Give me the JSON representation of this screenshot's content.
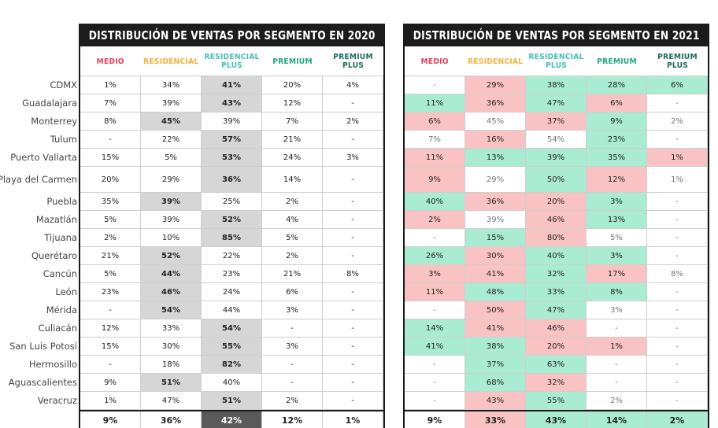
{
  "colors": {
    "medio": "#e8415b",
    "residencial": "#f2b33d",
    "residencial_plus": "#45c0b8",
    "premium": "#1fa882",
    "premium_plus": "#1d6b5a",
    "highlight_2020": "#d6d6d6",
    "total_highlight_2020": "#5a5a5a",
    "pink": "#f9c3c3",
    "green": "#a9ecd1",
    "title_bg": "#1c1c1c"
  },
  "columns": [
    {
      "label": "MEDIO",
      "color_key": "medio"
    },
    {
      "label": "RESIDENCIAL",
      "color_key": "residencial"
    },
    {
      "label": "RESIDENCIAL PLUS",
      "color_key": "residencial_plus"
    },
    {
      "label": "PREMIUM",
      "color_key": "premium"
    },
    {
      "label": "PREMIUM PLUS",
      "color_key": "premium_plus"
    }
  ],
  "cities": [
    "CDMX",
    "Guadalajara",
    "Monterrey",
    "Tulum",
    "Puerto Vallarta",
    "Playa del Carmen",
    "Puebla",
    "Mazatlán",
    "Tijuana",
    "Querétaro",
    "Cancún",
    "León",
    "Mérida",
    "Culiacán",
    "San Luis Potosí",
    "Hermosillo",
    "Aguascalientes",
    "Veracruz"
  ],
  "chart_data": [
    {
      "type": "table",
      "title": "DISTRIBUCIÓN DE VENTAS POR SEGMENTO EN 2020",
      "columns": [
        "MEDIO",
        "RESIDENCIAL",
        "RESIDENCIAL PLUS",
        "PREMIUM",
        "PREMIUM PLUS"
      ],
      "rows": [
        [
          "1%",
          "34%",
          "41%",
          "20%",
          "4%"
        ],
        [
          "7%",
          "39%",
          "43%",
          "12%",
          "-"
        ],
        [
          "8%",
          "45%",
          "39%",
          "7%",
          "2%"
        ],
        [
          "-",
          "22%",
          "57%",
          "21%",
          "-"
        ],
        [
          "15%",
          "5%",
          "53%",
          "24%",
          "3%"
        ],
        [
          "20%",
          "29%",
          "36%",
          "14%",
          "-"
        ],
        [
          "35%",
          "39%",
          "25%",
          "2%",
          "-"
        ],
        [
          "5%",
          "39%",
          "52%",
          "4%",
          "-"
        ],
        [
          "2%",
          "10%",
          "85%",
          "5%",
          "-"
        ],
        [
          "21%",
          "52%",
          "22%",
          "2%",
          "-"
        ],
        [
          "5%",
          "44%",
          "23%",
          "21%",
          "8%"
        ],
        [
          "23%",
          "46%",
          "24%",
          "6%",
          "-"
        ],
        [
          "-",
          "54%",
          "44%",
          "3%",
          "-"
        ],
        [
          "12%",
          "33%",
          "54%",
          "-",
          "-"
        ],
        [
          "15%",
          "30%",
          "55%",
          "3%",
          "-"
        ],
        [
          "-",
          "18%",
          "82%",
          "-",
          "-"
        ],
        [
          "9%",
          "51%",
          "40%",
          "-",
          "-"
        ],
        [
          "1%",
          "47%",
          "51%",
          "2%",
          "-"
        ]
      ],
      "highlight_col": [
        2,
        2,
        1,
        2,
        2,
        2,
        1,
        2,
        2,
        1,
        1,
        1,
        1,
        2,
        2,
        2,
        1,
        2
      ],
      "totals": [
        "9%",
        "36%",
        "42%",
        "12%",
        "1%"
      ],
      "totals_highlight_col": 2
    },
    {
      "type": "table",
      "title": "DISTRIBUCIÓN DE VENTAS POR SEGMENTO EN 2021",
      "columns": [
        "MEDIO",
        "RESIDENCIAL",
        "RESIDENCIAL PLUS",
        "PREMIUM",
        "PREMIUM PLUS"
      ],
      "rows": [
        [
          "-",
          "29%",
          "38%",
          "28%",
          "6%"
        ],
        [
          "11%",
          "36%",
          "47%",
          "6%",
          "-"
        ],
        [
          "6%",
          "45%",
          "37%",
          "9%",
          "2%"
        ],
        [
          "7%",
          "16%",
          "54%",
          "23%",
          "-"
        ],
        [
          "11%",
          "13%",
          "39%",
          "35%",
          "1%"
        ],
        [
          "9%",
          "29%",
          "50%",
          "12%",
          "1%"
        ],
        [
          "40%",
          "36%",
          "20%",
          "3%",
          "-"
        ],
        [
          "2%",
          "39%",
          "46%",
          "13%",
          "-"
        ],
        [
          "-",
          "15%",
          "80%",
          "5%",
          "-"
        ],
        [
          "26%",
          "30%",
          "40%",
          "3%",
          "-"
        ],
        [
          "3%",
          "41%",
          "32%",
          "17%",
          "8%"
        ],
        [
          "11%",
          "48%",
          "33%",
          "8%",
          "-"
        ],
        [
          "-",
          "50%",
          "47%",
          "3%",
          "-"
        ],
        [
          "14%",
          "41%",
          "46%",
          "-",
          "-"
        ],
        [
          "41%",
          "38%",
          "20%",
          "1%",
          "-"
        ],
        [
          "-",
          "37%",
          "63%",
          "-",
          "-"
        ],
        [
          "-",
          "68%",
          "32%",
          "-",
          "-"
        ],
        [
          "-",
          "43%",
          "55%",
          "2%",
          "-"
        ]
      ],
      "shading": [
        [
          "n",
          "p",
          "g",
          "g",
          "g"
        ],
        [
          "g",
          "p",
          "g",
          "p",
          "n"
        ],
        [
          "p",
          "n",
          "p",
          "g",
          "n"
        ],
        [
          "n",
          "p",
          "n",
          "g",
          "n"
        ],
        [
          "p",
          "g",
          "g",
          "g",
          "p"
        ],
        [
          "p",
          "n",
          "g",
          "p",
          "n"
        ],
        [
          "g",
          "p",
          "p",
          "g",
          "n"
        ],
        [
          "p",
          "n",
          "p",
          "g",
          "n"
        ],
        [
          "n",
          "g",
          "p",
          "n",
          "n"
        ],
        [
          "g",
          "p",
          "g",
          "g",
          "n"
        ],
        [
          "p",
          "p",
          "g",
          "p",
          "n"
        ],
        [
          "p",
          "g",
          "g",
          "g",
          "n"
        ],
        [
          "n",
          "p",
          "g",
          "n",
          "n"
        ],
        [
          "g",
          "p",
          "p",
          "n",
          "n"
        ],
        [
          "g",
          "g",
          "p",
          "p",
          "n"
        ],
        [
          "n",
          "g",
          "g",
          "n",
          "n"
        ],
        [
          "n",
          "g",
          "p",
          "n",
          "n"
        ],
        [
          "n",
          "p",
          "g",
          "n",
          "n"
        ]
      ],
      "totals": [
        "9%",
        "33%",
        "43%",
        "14%",
        "2%"
      ],
      "totals_shading": [
        "n",
        "p",
        "g",
        "g",
        "g"
      ]
    }
  ]
}
